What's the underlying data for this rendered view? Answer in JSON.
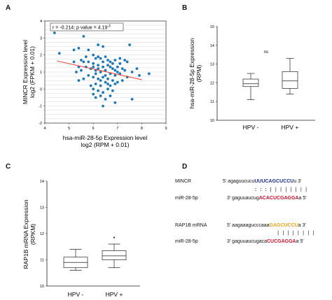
{
  "chart_data": [
    {
      "panel": "A",
      "type": "scatter",
      "xlabel": "hsa-miR-28-5p Expression level",
      "xlabel2": "log2 (RPM + 0.01)",
      "ylabel": "MINCR Expression level",
      "ylabel2": "log2 (FPKM + 0.01)",
      "xlim": [
        4,
        9
      ],
      "ylim": [
        -2,
        4
      ],
      "xticks": [
        "4",
        "5",
        "6",
        "7",
        "8",
        "9"
      ],
      "yticks": [
        "-2",
        "-1",
        "0",
        "1",
        "2",
        "3",
        "4"
      ],
      "annotation": "r = -0.214; p value = 4.19",
      "annotation_exp": "-3",
      "point_color": "#1f78b4",
      "line_color": "#e53935",
      "fit_line": {
        "x": [
          4.5,
          8.0
        ],
        "y": [
          1.65,
          0.55
        ]
      },
      "points": [
        [
          4.4,
          3.3
        ],
        [
          4.6,
          2.1
        ],
        [
          5.2,
          2.3
        ],
        [
          5.4,
          2.4
        ],
        [
          5.6,
          3.1
        ],
        [
          5.2,
          1.6
        ],
        [
          5.6,
          1.6
        ],
        [
          5.7,
          1.9
        ],
        [
          5.4,
          1.3
        ],
        [
          5.8,
          2.3
        ],
        [
          6.0,
          2.0
        ],
        [
          6.2,
          2.6
        ],
        [
          6.4,
          2.5
        ],
        [
          6.1,
          1.8
        ],
        [
          6.3,
          1.8
        ],
        [
          6.5,
          1.9
        ],
        [
          6.7,
          1.6
        ],
        [
          6.9,
          1.7
        ],
        [
          7.1,
          1.8
        ],
        [
          7.4,
          1.6
        ],
        [
          7.5,
          2.6
        ],
        [
          7.3,
          1.7
        ],
        [
          8.3,
          0.9
        ],
        [
          7.9,
          0.8
        ],
        [
          7.6,
          1.0
        ],
        [
          7.2,
          1.2
        ],
        [
          7.0,
          1.0
        ],
        [
          6.8,
          1.2
        ],
        [
          6.6,
          1.4
        ],
        [
          6.4,
          1.3
        ],
        [
          6.2,
          1.4
        ],
        [
          6.0,
          1.5
        ],
        [
          5.9,
          1.2
        ],
        [
          5.7,
          1.3
        ],
        [
          5.5,
          1.1
        ],
        [
          5.3,
          1.0
        ],
        [
          6.1,
          1.1
        ],
        [
          6.3,
          1.0
        ],
        [
          6.5,
          1.1
        ],
        [
          6.7,
          0.9
        ],
        [
          6.9,
          0.8
        ],
        [
          7.1,
          0.9
        ],
        [
          7.3,
          1.1
        ],
        [
          6.0,
          0.7
        ],
        [
          6.2,
          0.6
        ],
        [
          6.4,
          0.7
        ],
        [
          6.6,
          0.6
        ],
        [
          6.8,
          0.5
        ],
        [
          7.0,
          0.4
        ],
        [
          5.8,
          0.8
        ],
        [
          5.6,
          0.6
        ],
        [
          6.1,
          0.3
        ],
        [
          6.3,
          0.2
        ],
        [
          6.5,
          0.4
        ],
        [
          6.7,
          0.2
        ],
        [
          6.9,
          0.3
        ],
        [
          7.2,
          0.5
        ],
        [
          5.9,
          0.2
        ],
        [
          6.0,
          0.0
        ],
        [
          6.2,
          -0.1
        ],
        [
          6.4,
          -0.2
        ],
        [
          6.6,
          0.0
        ],
        [
          6.8,
          -0.1
        ],
        [
          6.3,
          -0.4
        ],
        [
          6.5,
          -0.6
        ],
        [
          6.7,
          -0.4
        ],
        [
          6.1,
          -0.5
        ],
        [
          6.4,
          -1.0
        ],
        [
          6.9,
          -0.8
        ],
        [
          7.6,
          -0.6
        ],
        [
          6.2,
          1.9
        ],
        [
          6.6,
          1.7
        ],
        [
          6.8,
          1.5
        ],
        [
          7.0,
          1.3
        ],
        [
          6.4,
          1.6
        ],
        [
          6.0,
          1.3
        ],
        [
          5.8,
          1.6
        ],
        [
          6.5,
          0.8
        ],
        [
          6.3,
          0.5
        ],
        [
          6.1,
          0.9
        ],
        [
          6.7,
          1.3
        ],
        [
          7.1,
          1.5
        ],
        [
          6.9,
          1.1
        ],
        [
          5.5,
          1.7
        ],
        [
          6.2,
          1.2
        ],
        [
          6.6,
          0.3
        ],
        [
          7.4,
          0.7
        ],
        [
          6.0,
          -0.3
        ],
        [
          7.8,
          1.2
        ],
        [
          5.4,
          0.5
        ]
      ]
    },
    {
      "panel": "B",
      "type": "box",
      "ylabel": "hsa-miR-28-5p Expression",
      "ylabel2": "(RPM)",
      "ylim": [
        10,
        15
      ],
      "yticks": [
        "10",
        "11",
        "12",
        "13",
        "14",
        "15"
      ],
      "categories": [
        "HPV -",
        "HPV +"
      ],
      "boxes": [
        {
          "min": 11.1,
          "q1": 11.8,
          "median": 11.95,
          "q3": 12.2,
          "max": 12.5
        },
        {
          "min": 11.4,
          "q1": 11.7,
          "median": 12.1,
          "q3": 12.6,
          "max": 13.3
        }
      ],
      "annotation": "ns"
    },
    {
      "panel": "C",
      "type": "box",
      "ylabel": "RAP1B mRNA Expression",
      "ylabel2": "(RPKM)",
      "ylim": [
        10,
        14
      ],
      "yticks": [
        "10",
        "11",
        "12",
        "13",
        "14"
      ],
      "categories": [
        "HPV -",
        "HPV +"
      ],
      "boxes": [
        {
          "min": 10.6,
          "q1": 10.7,
          "median": 10.9,
          "q3": 11.1,
          "max": 11.4
        },
        {
          "min": 10.7,
          "q1": 11.0,
          "median": 11.15,
          "q3": 11.35,
          "max": 11.6,
          "outlier": 11.85
        }
      ]
    }
  ],
  "panels": {
    "a": "A",
    "b": "B",
    "c": "C",
    "d": "D"
  },
  "panel_d": {
    "mincr_label": "MINCR",
    "mincr_5": "5' agaguucucu",
    "mincr_site": "UUUCAGCUCCU",
    "mincr_3": "u 3'",
    "pairs1": ": : : | | | | | | | |",
    "mir1_label": "miR-28-5p",
    "mir1_3": "3' gaguuaucug",
    "mir1_seed": "ACACUCGAGGA",
    "mir1_5": "a 5'",
    "rap_label": "RAP1B mRNA",
    "rap_5": "5' aagaaagucccaaa",
    "rap_site": "GAGCUCCU",
    "rap_3": "a 3'",
    "pairs2": "| | | | | | | |",
    "mir2_label": "miR-28-5p",
    "mir2_3": "3' gaguuaucugaca",
    "mir2_seed": "CUCGAGGA",
    "mir2_5": "a 5'"
  }
}
